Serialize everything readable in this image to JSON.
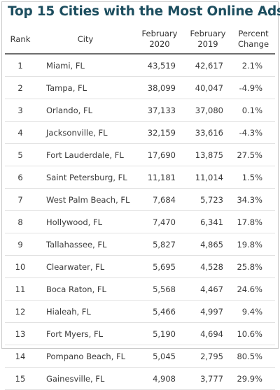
{
  "chart_data": {
    "type": "table",
    "title": "Top 15 Cities with the Most Online Ads",
    "columns": {
      "rank": "Rank",
      "city": "City",
      "feb2020": [
        "February",
        "2020"
      ],
      "feb2019": [
        "February",
        "2019"
      ],
      "pct": [
        "Percent",
        "Change"
      ]
    },
    "rows": [
      {
        "rank": "1",
        "city": "Miami, FL",
        "feb2020": "43,519",
        "feb2019": "42,617",
        "pct": "2.1%"
      },
      {
        "rank": "2",
        "city": "Tampa, FL",
        "feb2020": "38,099",
        "feb2019": "40,047",
        "pct": "-4.9%"
      },
      {
        "rank": "3",
        "city": "Orlando, FL",
        "feb2020": "37,133",
        "feb2019": "37,080",
        "pct": "0.1%"
      },
      {
        "rank": "4",
        "city": "Jacksonville, FL",
        "feb2020": "32,159",
        "feb2019": "33,616",
        "pct": "-4.3%"
      },
      {
        "rank": "5",
        "city": "Fort Lauderdale, FL",
        "feb2020": "17,690",
        "feb2019": "13,875",
        "pct": "27.5%"
      },
      {
        "rank": "6",
        "city": "Saint Petersburg, FL",
        "feb2020": "11,181",
        "feb2019": "11,014",
        "pct": "1.5%"
      },
      {
        "rank": "7",
        "city": "West Palm Beach, FL",
        "feb2020": "7,684",
        "feb2019": "5,723",
        "pct": "34.3%"
      },
      {
        "rank": "8",
        "city": "Hollywood, FL",
        "feb2020": "7,470",
        "feb2019": "6,341",
        "pct": "17.8%"
      },
      {
        "rank": "9",
        "city": "Tallahassee, FL",
        "feb2020": "5,827",
        "feb2019": "4,865",
        "pct": "19.8%"
      },
      {
        "rank": "10",
        "city": "Clearwater, FL",
        "feb2020": "5,695",
        "feb2019": "4,528",
        "pct": "25.8%"
      },
      {
        "rank": "11",
        "city": "Boca Raton, FL",
        "feb2020": "5,568",
        "feb2019": "4,467",
        "pct": "24.6%"
      },
      {
        "rank": "12",
        "city": "Hialeah, FL",
        "feb2020": "5,466",
        "feb2019": "4,997",
        "pct": "9.4%"
      },
      {
        "rank": "13",
        "city": "Fort Myers, FL",
        "feb2020": "5,190",
        "feb2019": "4,694",
        "pct": "10.6%"
      },
      {
        "rank": "14",
        "city": "Pompano Beach, FL",
        "feb2020": "5,045",
        "feb2019": "2,795",
        "pct": "80.5%"
      },
      {
        "rank": "15",
        "city": "Gainesville, FL",
        "feb2020": "4,908",
        "feb2019": "3,777",
        "pct": "29.9%"
      }
    ]
  },
  "colors": {
    "title": "#1d4e5f",
    "header_rule": "#6e6e6e",
    "row_rule": "#e2e2e2"
  }
}
